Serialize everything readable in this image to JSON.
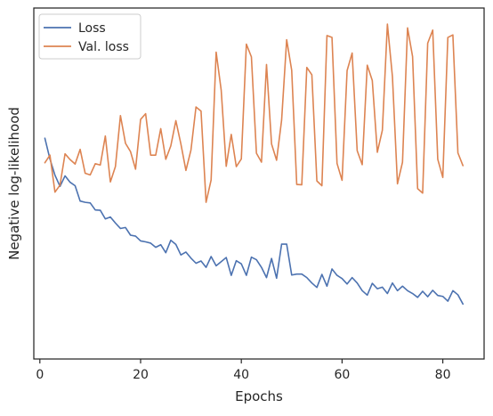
{
  "chart_data": {
    "type": "line",
    "title": "",
    "xlabel": "Epochs",
    "ylabel": "Negative log-likelihood",
    "xlim": [
      -1.2,
      88.2
    ],
    "ylim": [
      0,
      1
    ],
    "xticks": [
      0,
      20,
      40,
      60,
      80
    ],
    "yticks": [],
    "grid": false,
    "legend_position": "top-left",
    "x": [
      1,
      2,
      3,
      4,
      5,
      6,
      7,
      8,
      9,
      10,
      11,
      12,
      13,
      14,
      15,
      16,
      17,
      18,
      19,
      20,
      21,
      22,
      23,
      24,
      25,
      26,
      27,
      28,
      29,
      30,
      31,
      32,
      33,
      34,
      35,
      36,
      37,
      38,
      39,
      40,
      41,
      42,
      43,
      44,
      45,
      46,
      47,
      48,
      49,
      50,
      51,
      52,
      53,
      54,
      55,
      56,
      57,
      58,
      59,
      60,
      61,
      62,
      63,
      64,
      65,
      66,
      67,
      68,
      69,
      70,
      71,
      72,
      73,
      74,
      75,
      76,
      77,
      78,
      79,
      80,
      81,
      82,
      83,
      84
    ],
    "series": [
      {
        "name": "Loss",
        "color": "#4c72b0",
        "values": [
          0.642,
          0.577,
          0.526,
          0.491,
          0.524,
          0.504,
          0.493,
          0.445,
          0.441,
          0.439,
          0.417,
          0.416,
          0.389,
          0.395,
          0.376,
          0.359,
          0.362,
          0.338,
          0.335,
          0.32,
          0.317,
          0.313,
          0.3,
          0.308,
          0.283,
          0.322,
          0.309,
          0.276,
          0.285,
          0.266,
          0.25,
          0.257,
          0.237,
          0.271,
          0.242,
          0.255,
          0.268,
          0.212,
          0.258,
          0.248,
          0.212,
          0.269,
          0.261,
          0.237,
          0.205,
          0.265,
          0.203,
          0.31,
          0.31,
          0.213,
          0.216,
          0.216,
          0.205,
          0.188,
          0.174,
          0.215,
          0.178,
          0.232,
          0.212,
          0.202,
          0.185,
          0.205,
          0.188,
          0.164,
          0.15,
          0.187,
          0.17,
          0.175,
          0.155,
          0.188,
          0.164,
          0.178,
          0.164,
          0.155,
          0.143,
          0.162,
          0.145,
          0.165,
          0.149,
          0.146,
          0.131,
          0.164,
          0.151,
          0.122
        ]
      },
      {
        "name": "Val. loss",
        "color": "#dd8452",
        "values": [
          0.565,
          0.589,
          0.473,
          0.495,
          0.593,
          0.575,
          0.561,
          0.607,
          0.532,
          0.527,
          0.562,
          0.558,
          0.649,
          0.505,
          0.553,
          0.713,
          0.626,
          0.6,
          0.545,
          0.701,
          0.719,
          0.589,
          0.589,
          0.672,
          0.576,
          0.618,
          0.697,
          0.624,
          0.541,
          0.605,
          0.74,
          0.727,
          0.441,
          0.511,
          0.912,
          0.793,
          0.554,
          0.654,
          0.553,
          0.577,
          0.937,
          0.897,
          0.595,
          0.567,
          0.873,
          0.624,
          0.573,
          0.699,
          0.951,
          0.855,
          0.497,
          0.496,
          0.864,
          0.841,
          0.508,
          0.493,
          0.964,
          0.958,
          0.563,
          0.51,
          0.854,
          0.909,
          0.603,
          0.559,
          0.871,
          0.823,
          0.598,
          0.667,
          1.0,
          0.835,
          0.499,
          0.567,
          0.988,
          0.898,
          0.484,
          0.47,
          0.94,
          0.981,
          0.576,
          0.519,
          0.958,
          0.966,
          0.596,
          0.556
        ]
      }
    ]
  }
}
